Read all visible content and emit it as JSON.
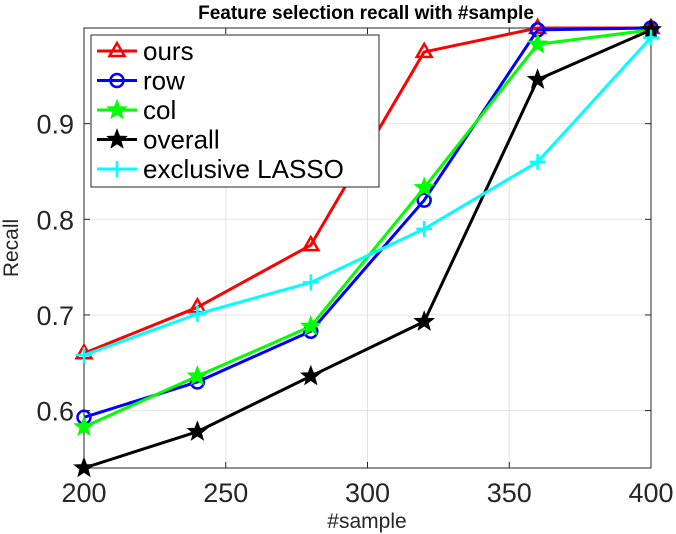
{
  "chart_data": {
    "type": "line",
    "title": "Feature selection recall with #sample",
    "xlabel": "#sample",
    "ylabel": "Recall",
    "xlim": [
      200,
      400
    ],
    "ylim": [
      0.54,
      1.0
    ],
    "xticks": [
      200,
      250,
      300,
      350,
      400
    ],
    "xtick_labels": [
      "200",
      "250",
      "300",
      "350",
      "400"
    ],
    "yticks": [
      0.6,
      0.7,
      0.8,
      0.9
    ],
    "ytick_labels": [
      "0.6",
      "0.7",
      "0.8",
      "0.9"
    ],
    "grid": true,
    "legend_position": "top-left",
    "x": [
      200,
      240,
      280,
      320,
      360,
      400
    ],
    "series": [
      {
        "name": "ours",
        "color": "#ff0000",
        "marker": "triangle",
        "values": [
          0.66,
          0.708,
          0.773,
          0.975,
          1.0,
          1.0
        ]
      },
      {
        "name": "row",
        "color": "#0000ff",
        "marker": "circle",
        "values": [
          0.593,
          0.63,
          0.683,
          0.82,
          0.998,
          1.0
        ]
      },
      {
        "name": "col",
        "color": "#00ff00",
        "marker": "star",
        "values": [
          0.583,
          0.636,
          0.688,
          0.833,
          0.983,
          0.998
        ]
      },
      {
        "name": "overall",
        "color": "#000000",
        "marker": "star",
        "values": [
          0.54,
          0.578,
          0.636,
          0.693,
          0.946,
          0.998
        ]
      },
      {
        "name": "exclusive LASSO",
        "color": "#00ffff",
        "marker": "plus",
        "values": [
          0.658,
          0.701,
          0.734,
          0.79,
          0.86,
          0.99
        ]
      }
    ]
  }
}
